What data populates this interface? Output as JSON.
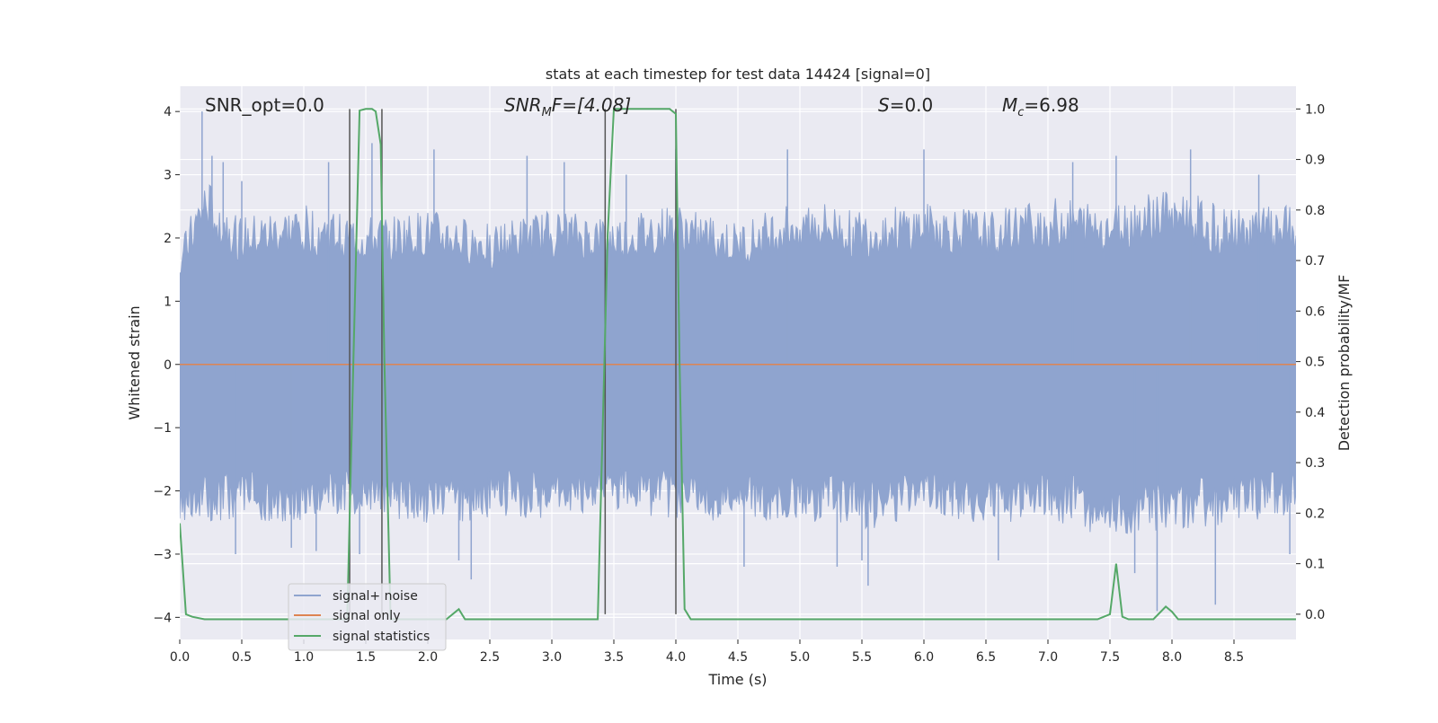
{
  "chart_data": {
    "type": "line",
    "title": "stats at each timestep for test data 14424 [signal=0]",
    "xlabel": "Time (s)",
    "ylabel": "Whitened strain",
    "y2label": "Detection probability/MF",
    "xlim": [
      0.0,
      9.0
    ],
    "ylim": [
      -4.35,
      4.4
    ],
    "y2lim": [
      -0.05,
      1.045
    ],
    "x_ticks": [
      0.0,
      0.5,
      1.0,
      1.5,
      2.0,
      2.5,
      3.0,
      3.5,
      4.0,
      4.5,
      5.0,
      5.5,
      6.0,
      6.5,
      7.0,
      7.5,
      8.0,
      8.5
    ],
    "x_tick_labels": [
      "0.0",
      "0.5",
      "1.0",
      "1.5",
      "2.0",
      "2.5",
      "3.0",
      "3.5",
      "4.0",
      "4.5",
      "5.0",
      "5.5",
      "6.0",
      "6.5",
      "7.0",
      "7.5",
      "8.0",
      "8.5"
    ],
    "y_ticks": [
      -4,
      -3,
      -2,
      -1,
      0,
      1,
      2,
      3,
      4
    ],
    "y_tick_labels": [
      "−4",
      "−3",
      "−2",
      "−1",
      "0",
      "1",
      "2",
      "3",
      "4"
    ],
    "y2_ticks": [
      0.0,
      0.1,
      0.2,
      0.3,
      0.4,
      0.5,
      0.6,
      0.7,
      0.8,
      0.9,
      1.0
    ],
    "y2_tick_labels": [
      "0.0",
      "0.1",
      "0.2",
      "0.3",
      "0.4",
      "0.5",
      "0.6",
      "0.7",
      "0.8",
      "0.9",
      "1.0"
    ],
    "grid": true,
    "legend_placement": "lower-left",
    "annotations": {
      "snr_opt": "SNR_opt=0.0",
      "snr_mf_prefix": "SNR",
      "snr_mf_sub": "M",
      "snr_mf_suffix": "F=[4.08]",
      "s_var": "S",
      "s_value": "=0.0",
      "mc_var": "M",
      "mc_sub": "c",
      "mc_value": "=6.98"
    },
    "series": [
      {
        "name": "signal+ noise",
        "color": "#8fa4cf",
        "style": "noise band",
        "envelope_hi": [
          [
            0.0,
            1.75
          ],
          [
            0.2,
            2.8
          ],
          [
            0.5,
            2.2
          ],
          [
            1.0,
            2.4
          ],
          [
            1.5,
            2.2
          ],
          [
            2.0,
            2.3
          ],
          [
            2.5,
            2.1
          ],
          [
            3.0,
            2.3
          ],
          [
            3.5,
            2.2
          ],
          [
            4.0,
            2.4
          ],
          [
            4.5,
            2.1
          ],
          [
            5.0,
            2.5
          ],
          [
            5.5,
            2.3
          ],
          [
            6.0,
            2.4
          ],
          [
            6.5,
            2.3
          ],
          [
            7.0,
            2.5
          ],
          [
            7.5,
            2.4
          ],
          [
            8.0,
            2.7
          ],
          [
            8.5,
            2.3
          ],
          [
            9.0,
            2.4
          ]
        ],
        "envelope_lo": [
          [
            0.0,
            -2.4
          ],
          [
            0.5,
            -2.3
          ],
          [
            1.0,
            -2.4
          ],
          [
            1.5,
            -2.2
          ],
          [
            2.0,
            -2.4
          ],
          [
            2.5,
            -2.3
          ],
          [
            3.0,
            -2.3
          ],
          [
            3.5,
            -2.2
          ],
          [
            4.0,
            -2.3
          ],
          [
            4.5,
            -2.4
          ],
          [
            5.0,
            -2.3
          ],
          [
            5.5,
            -2.5
          ],
          [
            6.0,
            -2.3
          ],
          [
            6.5,
            -2.4
          ],
          [
            7.0,
            -2.3
          ],
          [
            7.5,
            -2.6
          ],
          [
            8.0,
            -2.5
          ],
          [
            8.5,
            -2.4
          ],
          [
            9.0,
            -2.3
          ]
        ],
        "spikes": [
          [
            0.18,
            4.0
          ],
          [
            0.26,
            3.3
          ],
          [
            0.35,
            3.2
          ],
          [
            0.45,
            -3.0
          ],
          [
            0.5,
            2.9
          ],
          [
            0.9,
            -2.9
          ],
          [
            1.1,
            -2.95
          ],
          [
            1.2,
            3.2
          ],
          [
            1.45,
            -3.0
          ],
          [
            1.55,
            3.5
          ],
          [
            2.05,
            3.4
          ],
          [
            2.25,
            -3.1
          ],
          [
            2.35,
            -3.4
          ],
          [
            2.8,
            3.3
          ],
          [
            3.1,
            3.2
          ],
          [
            3.6,
            3.0
          ],
          [
            4.0,
            3.4
          ],
          [
            4.55,
            -3.2
          ],
          [
            4.9,
            3.4
          ],
          [
            5.3,
            -3.2
          ],
          [
            5.5,
            -3.1
          ],
          [
            5.55,
            -3.5
          ],
          [
            6.0,
            3.4
          ],
          [
            6.6,
            -3.1
          ],
          [
            7.2,
            3.2
          ],
          [
            7.55,
            3.3
          ],
          [
            7.7,
            -3.3
          ],
          [
            7.88,
            -3.9
          ],
          [
            8.15,
            3.4
          ],
          [
            8.35,
            -3.8
          ],
          [
            8.7,
            3.0
          ],
          [
            8.95,
            -3.0
          ]
        ]
      },
      {
        "name": "signal only",
        "color": "#dd8452",
        "points": [
          [
            0.0,
            0.0
          ],
          [
            9.0,
            0.0
          ]
        ]
      },
      {
        "name": "signal statistics",
        "color": "#55a868",
        "axis": "right",
        "points": [
          [
            0.0,
            0.18
          ],
          [
            0.05,
            0.0
          ],
          [
            0.1,
            -0.005
          ],
          [
            0.2,
            -0.01
          ],
          [
            1.35,
            -0.01
          ],
          [
            1.4,
            0.5
          ],
          [
            1.45,
            0.997
          ],
          [
            1.5,
            1.0
          ],
          [
            1.55,
            1.0
          ],
          [
            1.58,
            0.995
          ],
          [
            1.62,
            0.93
          ],
          [
            1.65,
            0.5
          ],
          [
            1.7,
            -0.01
          ],
          [
            2.15,
            -0.01
          ],
          [
            2.25,
            0.01
          ],
          [
            2.3,
            -0.01
          ],
          [
            3.37,
            -0.01
          ],
          [
            3.45,
            0.75
          ],
          [
            3.5,
            1.0
          ],
          [
            3.6,
            1.0
          ],
          [
            3.8,
            1.0
          ],
          [
            3.95,
            1.0
          ],
          [
            4.0,
            0.99
          ],
          [
            4.03,
            0.5
          ],
          [
            4.07,
            0.01
          ],
          [
            4.12,
            -0.01
          ],
          [
            7.4,
            -0.01
          ],
          [
            7.5,
            0.0
          ],
          [
            7.55,
            0.1
          ],
          [
            7.6,
            -0.005
          ],
          [
            7.65,
            -0.01
          ],
          [
            7.85,
            -0.01
          ],
          [
            7.95,
            0.015
          ],
          [
            8.0,
            0.005
          ],
          [
            8.05,
            -0.01
          ],
          [
            9.0,
            -0.01
          ]
        ]
      }
    ],
    "markers": [
      1.37,
      1.63,
      3.43,
      4.0
    ]
  }
}
